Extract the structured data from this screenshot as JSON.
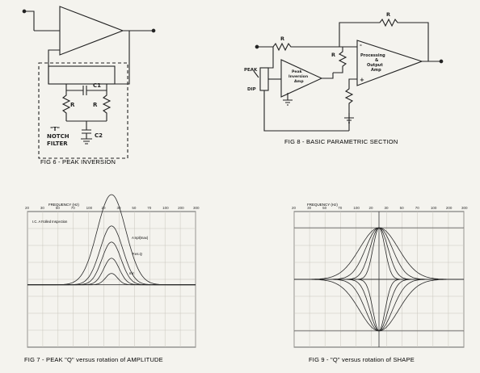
{
  "figures": {
    "fig6": {
      "caption": "FIG 6 - PEAK INVERSION",
      "labels": {
        "c1": "C1",
        "r_left": "R",
        "r_right": "R",
        "t_notch": "\"T\"",
        "notch": "NOTCH",
        "filter": "FILTER",
        "c2": "C2"
      }
    },
    "fig8": {
      "caption": "FIG 8 - BASIC PARAMETRIC SECTION",
      "labels": {
        "r_top": "R",
        "r_input": "R",
        "r_mid": "R",
        "peak": "PEAK",
        "dip": "DIP",
        "amp_line1": "Peak",
        "amp_line2": "Inversion",
        "amp_line3": "Amp",
        "proc_line1": "Processing",
        "proc_line2": "&",
        "proc_line3": "Output",
        "proc_line4": "Amp",
        "minus": "-",
        "plus": "+"
      }
    },
    "fig7": {
      "caption": "FIG 7 - PEAK \"Q\" versus rotation of AMPLITUDE",
      "axis_title": "FREQUENCY (Hz)",
      "legend": "I.C. A Rolled Inspection",
      "curve_labels": [
        "Ampl(max)",
        "Res.Q",
        "min"
      ]
    },
    "fig9": {
      "caption": "FIG 9 - \"Q\" versus rotation of SHAPE",
      "axis_title": "FREQUENCY (Hz)"
    }
  },
  "chart_data": [
    {
      "type": "line",
      "title": "FIG 7 - PEAK \"Q\" versus rotation of AMPLITUDE",
      "xlabel": "FREQUENCY (Hz)",
      "x_ticks": [
        "20",
        "30",
        "50",
        "70",
        "100",
        "20",
        "30",
        "50",
        "70",
        "100",
        "200",
        "300"
      ],
      "series": [
        {
          "peak_x": 0.5,
          "peak_level": 0.95,
          "width": 0.12
        },
        {
          "peak_x": 0.5,
          "peak_level": 0.62,
          "width": 0.095
        },
        {
          "peak_x": 0.5,
          "peak_level": 0.45,
          "width": 0.08
        },
        {
          "peak_x": 0.5,
          "peak_level": 0.28,
          "width": 0.065
        },
        {
          "peak_x": 0.5,
          "peak_level": 0.12,
          "width": 0.05
        }
      ]
    },
    {
      "type": "line",
      "title": "FIG 9 - \"Q\" versus rotation of SHAPE",
      "xlabel": "FREQUENCY (Hz)",
      "x_ticks": [
        "20",
        "30",
        "50",
        "70",
        "100",
        "20",
        "30",
        "50",
        "70",
        "100",
        "200",
        "300"
      ],
      "series": [
        {
          "peak_x": 0.5,
          "peak_level": 1.0,
          "width": 0.16
        },
        {
          "peak_x": 0.5,
          "peak_level": 1.0,
          "width": 0.11
        },
        {
          "peak_x": 0.5,
          "peak_level": 1.0,
          "width": 0.075
        },
        {
          "peak_x": 0.5,
          "peak_level": 1.0,
          "width": 0.05
        },
        {
          "peak_x": 0.5,
          "peak_level": -1.0,
          "width": 0.16
        },
        {
          "peak_x": 0.5,
          "peak_level": -1.0,
          "width": 0.11
        },
        {
          "peak_x": 0.5,
          "peak_level": -1.0,
          "width": 0.075
        },
        {
          "peak_x": 0.5,
          "peak_level": -1.0,
          "width": 0.05
        }
      ]
    }
  ]
}
